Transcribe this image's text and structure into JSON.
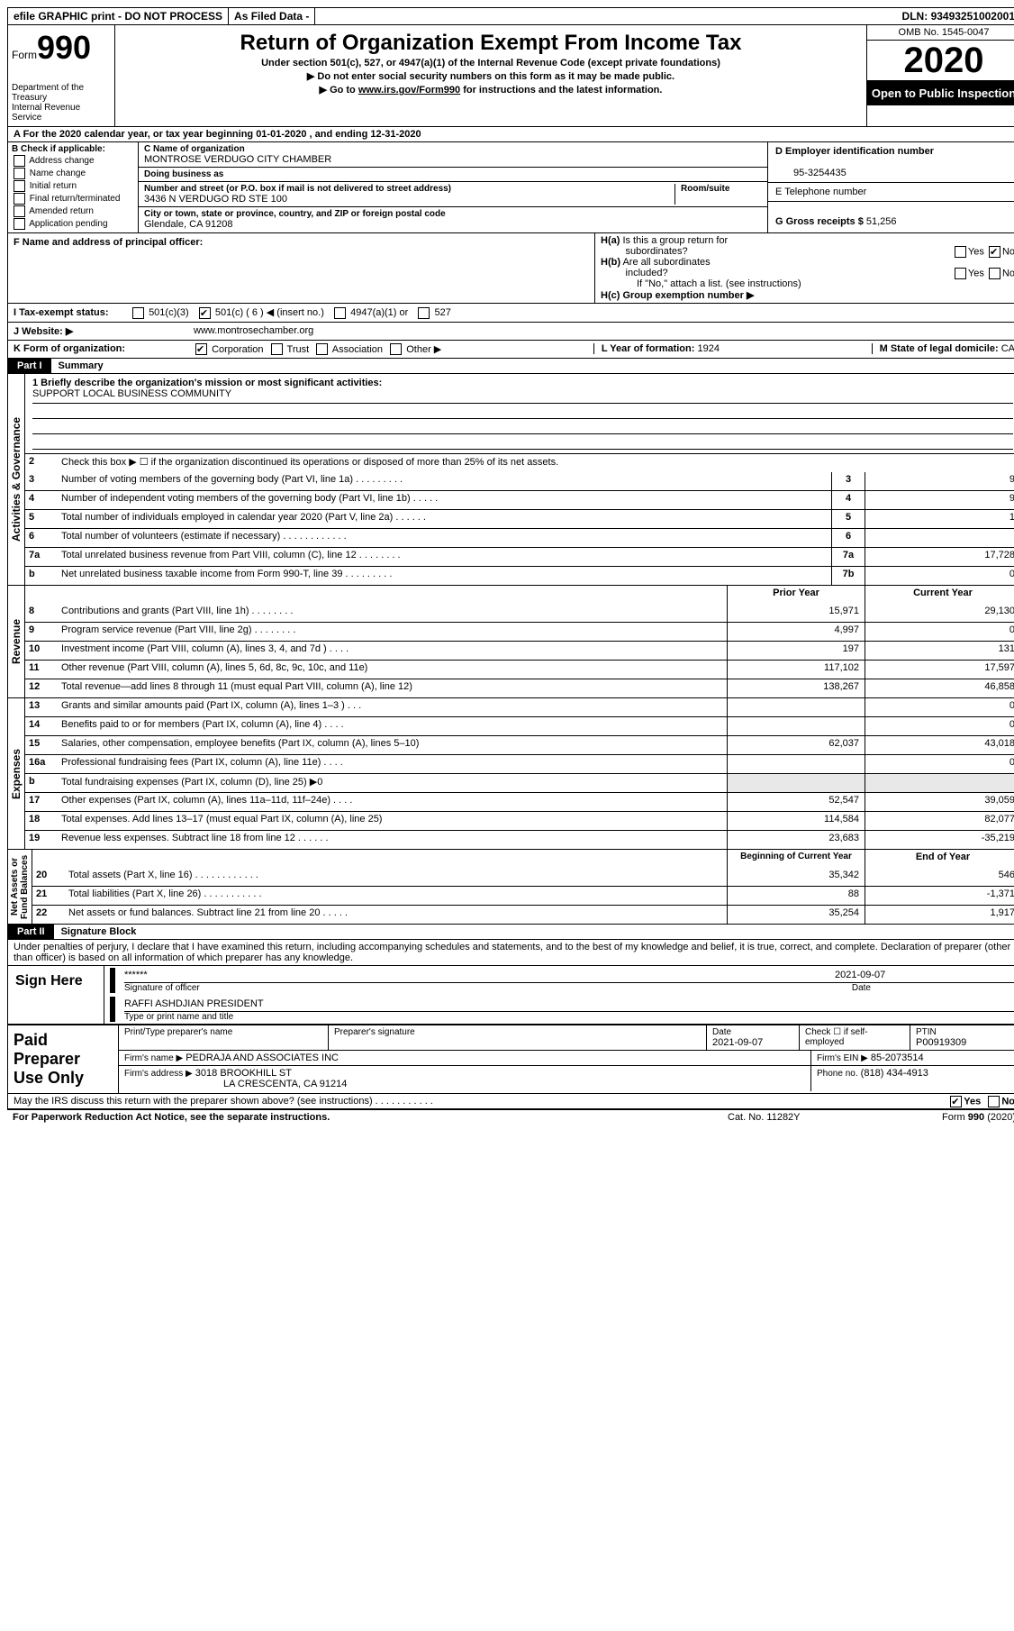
{
  "doc": {
    "top_bar": {
      "efile": "efile GRAPHIC print - DO NOT PROCESS",
      "as_filed": "As Filed Data -",
      "dln_label": "DLN:",
      "dln": "93493251002001"
    },
    "header": {
      "form_word": "Form",
      "form_num": "990",
      "dept": "Department of the Treasury\nInternal Revenue Service",
      "title": "Return of Organization Exempt From Income Tax",
      "sub1": "Under section 501(c), 527, or 4947(a)(1) of the Internal Revenue Code (except private foundations)",
      "sub2": "▶ Do not enter social security numbers on this form as it may be made public.",
      "sub3": "▶ Go to www.irs.gov/Form990 for instructions and the latest information.",
      "omb": "OMB No. 1545-0047",
      "year": "2020",
      "open": "Open to Public Inspection"
    },
    "tax_year": "A  For the 2020 calendar year, or tax year beginning 01-01-2020   , and ending 12-31-2020",
    "B": {
      "label": "B Check if applicable:",
      "items": [
        "Address change",
        "Name change",
        "Initial return",
        "Final return/terminated",
        "Amended return",
        "Application pending"
      ]
    },
    "C": {
      "name_label": "C Name of organization",
      "name": "MONTROSE VERDUGO CITY CHAMBER",
      "dba_label": "Doing business as",
      "dba": "",
      "street_label": "Number and street (or P.O. box if mail is not delivered to street address)",
      "room_label": "Room/suite",
      "street": "3436 N VERDUGO RD STE 100",
      "city_label": "City or town, state or province, country, and ZIP or foreign postal code",
      "city": "Glendale, CA  91208"
    },
    "D": {
      "ein_label": "D Employer identification number",
      "ein": "95-3254435",
      "phone_label": "E Telephone number",
      "phone": "",
      "gross_label": "G Gross receipts $",
      "gross": "51,256"
    },
    "F": {
      "label": "F  Name and address of principal officer:",
      "value": ""
    },
    "H": {
      "a": "H(a)  Is this a group return for subordinates?",
      "a_yes": "Yes",
      "a_no": "No",
      "b": "H(b) Are all subordinates included?",
      "b_yes": "Yes",
      "b_no": "No",
      "b_note": "If \"No,\" attach a list. (see instructions)",
      "c": "H(c)  Group exemption number ▶"
    },
    "I": {
      "label": "I  Tax-exempt status:",
      "o1": "501(c)(3)",
      "o2": "501(c) ( 6 ) ◀ (insert no.)",
      "o3": "4947(a)(1) or",
      "o4": "527"
    },
    "J": {
      "label": "J  Website: ▶",
      "value": "www.montrosechamber.org"
    },
    "K": {
      "label": "K Form of organization:",
      "o1": "Corporation",
      "o2": "Trust",
      "o3": "Association",
      "o4": "Other ▶"
    },
    "L": {
      "label": "L Year of formation:",
      "value": "1924"
    },
    "M": {
      "label": "M State of legal domicile:",
      "value": "CA"
    },
    "part1": {
      "header": "Part I",
      "title": "Summary",
      "activities": {
        "l1_label": "1 Briefly describe the organization's mission or most significant activities:",
        "l1_value": "SUPPORT LOCAL BUSINESS COMMUNITY",
        "l2": "Check this box ▶ ☐ if the organization discontinued its operations or disposed of more than 25% of its net assets.",
        "rows": [
          {
            "n": "3",
            "d": "Number of voting members of the governing body (Part VI, line 1a)  .   .   .   .   .   .   .   .   .",
            "i": "3",
            "v": "9"
          },
          {
            "n": "4",
            "d": "Number of independent voting members of the governing body (Part VI, line 1b)   .   .   .   .   .",
            "i": "4",
            "v": "9"
          },
          {
            "n": "5",
            "d": "Total number of individuals employed in calendar year 2020 (Part V, line 2a)   .   .   .   .   .   .",
            "i": "5",
            "v": "1"
          },
          {
            "n": "6",
            "d": "Total number of volunteers (estimate if necessary)   .   .   .   .   .   .   .   .   .   .   .   .",
            "i": "6",
            "v": ""
          },
          {
            "n": "7a",
            "d": "Total unrelated business revenue from Part VIII, column (C), line 12   .   .   .   .   .   .   .   .",
            "i": "7a",
            "v": "17,728"
          },
          {
            "n": "b",
            "d": "Net unrelated business taxable income from Form 990-T, line 39   .   .   .   .   .   .   .   .   .",
            "i": "7b",
            "v": "0"
          }
        ]
      },
      "revenue": {
        "header_prior": "Prior Year",
        "header_current": "Current Year",
        "rows": [
          {
            "n": "8",
            "d": "Contributions and grants (Part VIII, line 1h)   .   .   .   .   .   .   .   .",
            "p": "15,971",
            "c": "29,130"
          },
          {
            "n": "9",
            "d": "Program service revenue (Part VIII, line 2g)   .   .   .   .   .   .   .   .",
            "p": "4,997",
            "c": "0"
          },
          {
            "n": "10",
            "d": "Investment income (Part VIII, column (A), lines 3, 4, and 7d )   .   .   .   .",
            "p": "197",
            "c": "131"
          },
          {
            "n": "11",
            "d": "Other revenue (Part VIII, column (A), lines 5, 6d, 8c, 9c, 10c, and 11e)",
            "p": "117,102",
            "c": "17,597"
          },
          {
            "n": "12",
            "d": "Total revenue—add lines 8 through 11 (must equal Part VIII, column (A), line 12)",
            "p": "138,267",
            "c": "46,858"
          }
        ]
      },
      "expenses": {
        "rows": [
          {
            "n": "13",
            "d": "Grants and similar amounts paid (Part IX, column (A), lines 1–3 )   .   .   .",
            "p": "",
            "c": "0"
          },
          {
            "n": "14",
            "d": "Benefits paid to or for members (Part IX, column (A), line 4)   .   .   .   .",
            "p": "",
            "c": "0"
          },
          {
            "n": "15",
            "d": "Salaries, other compensation, employee benefits (Part IX, column (A), lines 5–10)",
            "p": "62,037",
            "c": "43,018"
          },
          {
            "n": "16a",
            "d": "Professional fundraising fees (Part IX, column (A), line 11e)   .   .   .   .",
            "p": "",
            "c": "0"
          },
          {
            "n": "b",
            "d": "Total fundraising expenses (Part IX, column (D), line 25) ▶0",
            "p": "",
            "c": "",
            "shade": true
          },
          {
            "n": "17",
            "d": "Other expenses (Part IX, column (A), lines 11a–11d, 11f–24e)   .   .   .   .",
            "p": "52,547",
            "c": "39,059"
          },
          {
            "n": "18",
            "d": "Total expenses. Add lines 13–17 (must equal Part IX, column (A), line 25)",
            "p": "114,584",
            "c": "82,077"
          },
          {
            "n": "19",
            "d": "Revenue less expenses. Subtract line 18 from line 12   .   .   .   .   .   .",
            "p": "23,683",
            "c": "-35,219"
          }
        ]
      },
      "netassets": {
        "header_begin": "Beginning of Current Year",
        "header_end": "End of Year",
        "rows": [
          {
            "n": "20",
            "d": "Total assets (Part X, line 16)   .   .   .   .   .   .   .   .   .   .   .   .",
            "p": "35,342",
            "c": "546"
          },
          {
            "n": "21",
            "d": "Total liabilities (Part X, line 26)   .   .   .   .   .   .   .   .   .   .   .",
            "p": "88",
            "c": "-1,371"
          },
          {
            "n": "22",
            "d": "Net assets or fund balances. Subtract line 21 from line 20   .   .   .   .   .",
            "p": "35,254",
            "c": "1,917"
          }
        ]
      },
      "vtabs": {
        "activities": "Activities & Governance",
        "revenue": "Revenue",
        "expenses": "Expenses",
        "netassets": "Net Assets or\nFund Balances"
      }
    },
    "part2": {
      "header": "Part II",
      "title": "Signature Block",
      "perjury": "Under penalties of perjury, I declare that I have examined this return, including accompanying schedules and statements, and to the best of my knowledge and belief, it is true, correct, and complete. Declaration of preparer (other than officer) is based on all information of which preparer has any knowledge.",
      "sign_here": "Sign Here",
      "sig_stars": "******",
      "sig_of_officer": "Signature of officer",
      "sig_date": "2021-09-07",
      "date_label": "Date",
      "officer_name": "RAFFI ASHDJIAN PRESIDENT",
      "type_name": "Type or print name and title",
      "paid_label": "Paid Preparer Use Only",
      "prep": {
        "name_label": "Print/Type preparer's name",
        "name": "",
        "sig_label": "Preparer's signature",
        "date_label": "Date",
        "date": "2021-09-07",
        "check_label": "Check ☐ if self-employed",
        "ptin_label": "PTIN",
        "ptin": "P00919309",
        "firm_name_label": "Firm's name    ▶",
        "firm_name": "PEDRAJA AND ASSOCIATES INC",
        "firm_ein_label": "Firm's EIN ▶",
        "firm_ein": "85-2073514",
        "firm_addr_label": "Firm's address ▶",
        "firm_addr1": "3018 BROOKHILL ST",
        "firm_addr2": "LA CRESCENTA, CA  91214",
        "phone_label": "Phone no.",
        "phone": "(818) 434-4913"
      },
      "discuss": "May the IRS discuss this return with the preparer shown above? (see instructions)   .   .   .   .   .   .   .   .   .   .   .",
      "discuss_yes": "Yes",
      "discuss_no": "No"
    },
    "footer": {
      "left": "For Paperwork Reduction Act Notice, see the separate instructions.",
      "cat": "Cat. No. 11282Y",
      "form": "Form 990 (2020)"
    }
  }
}
